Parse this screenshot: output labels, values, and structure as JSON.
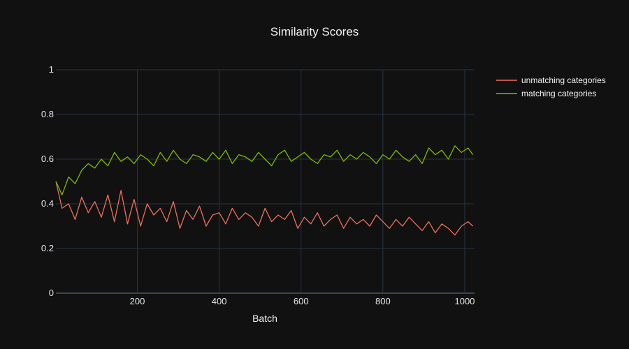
{
  "chart_data": {
    "type": "line",
    "title": "Similarity Scores",
    "xlabel": "Batch",
    "ylabel": "",
    "xlim": [
      1,
      1024
    ],
    "ylim": [
      0,
      1
    ],
    "x_ticks": [
      200,
      400,
      600,
      800,
      1000
    ],
    "y_ticks": [
      0,
      0.2,
      0.4,
      0.6,
      0.8,
      1
    ],
    "x_tick_labels": [
      "200",
      "400",
      "600",
      "800",
      "1000"
    ],
    "y_tick_labels": [
      "0",
      "0.2",
      "0.4",
      "0.6",
      "0.8",
      "1"
    ],
    "grid": true,
    "legend_position": "top-right",
    "background": "#111111",
    "series": [
      {
        "name": "unmatching categories",
        "color": "#ef6f5c",
        "x": [
          1,
          16,
          32,
          48,
          64,
          80,
          96,
          112,
          128,
          144,
          160,
          176,
          192,
          208,
          224,
          240,
          256,
          272,
          288,
          304,
          320,
          336,
          352,
          368,
          384,
          400,
          416,
          432,
          448,
          464,
          480,
          496,
          512,
          528,
          544,
          560,
          576,
          592,
          608,
          624,
          640,
          656,
          672,
          688,
          704,
          720,
          736,
          752,
          768,
          784,
          800,
          816,
          832,
          848,
          864,
          880,
          896,
          912,
          928,
          944,
          960,
          976,
          992,
          1008,
          1020
        ],
        "values": [
          0.5,
          0.38,
          0.4,
          0.33,
          0.43,
          0.36,
          0.41,
          0.34,
          0.44,
          0.32,
          0.46,
          0.31,
          0.42,
          0.3,
          0.4,
          0.35,
          0.38,
          0.32,
          0.41,
          0.29,
          0.37,
          0.33,
          0.39,
          0.3,
          0.35,
          0.36,
          0.31,
          0.38,
          0.33,
          0.36,
          0.34,
          0.3,
          0.38,
          0.32,
          0.35,
          0.33,
          0.37,
          0.29,
          0.34,
          0.31,
          0.36,
          0.3,
          0.33,
          0.35,
          0.29,
          0.34,
          0.31,
          0.33,
          0.3,
          0.35,
          0.32,
          0.29,
          0.33,
          0.3,
          0.34,
          0.31,
          0.28,
          0.32,
          0.27,
          0.31,
          0.29,
          0.26,
          0.3,
          0.32,
          0.3
        ]
      },
      {
        "name": "matching categories",
        "color": "#7fba00",
        "x": [
          1,
          16,
          32,
          48,
          64,
          80,
          96,
          112,
          128,
          144,
          160,
          176,
          192,
          208,
          224,
          240,
          256,
          272,
          288,
          304,
          320,
          336,
          352,
          368,
          384,
          400,
          416,
          432,
          448,
          464,
          480,
          496,
          512,
          528,
          544,
          560,
          576,
          592,
          608,
          624,
          640,
          656,
          672,
          688,
          704,
          720,
          736,
          752,
          768,
          784,
          800,
          816,
          832,
          848,
          864,
          880,
          896,
          912,
          928,
          944,
          960,
          976,
          992,
          1008,
          1020
        ],
        "values": [
          0.5,
          0.44,
          0.52,
          0.49,
          0.55,
          0.58,
          0.56,
          0.6,
          0.57,
          0.63,
          0.59,
          0.61,
          0.58,
          0.62,
          0.6,
          0.57,
          0.63,
          0.59,
          0.64,
          0.6,
          0.58,
          0.62,
          0.61,
          0.59,
          0.63,
          0.6,
          0.64,
          0.58,
          0.62,
          0.61,
          0.59,
          0.63,
          0.6,
          0.57,
          0.62,
          0.64,
          0.59,
          0.61,
          0.63,
          0.6,
          0.58,
          0.62,
          0.61,
          0.64,
          0.59,
          0.62,
          0.6,
          0.63,
          0.61,
          0.58,
          0.62,
          0.6,
          0.64,
          0.61,
          0.59,
          0.62,
          0.58,
          0.65,
          0.62,
          0.64,
          0.6,
          0.66,
          0.63,
          0.65,
          0.62
        ]
      }
    ]
  }
}
